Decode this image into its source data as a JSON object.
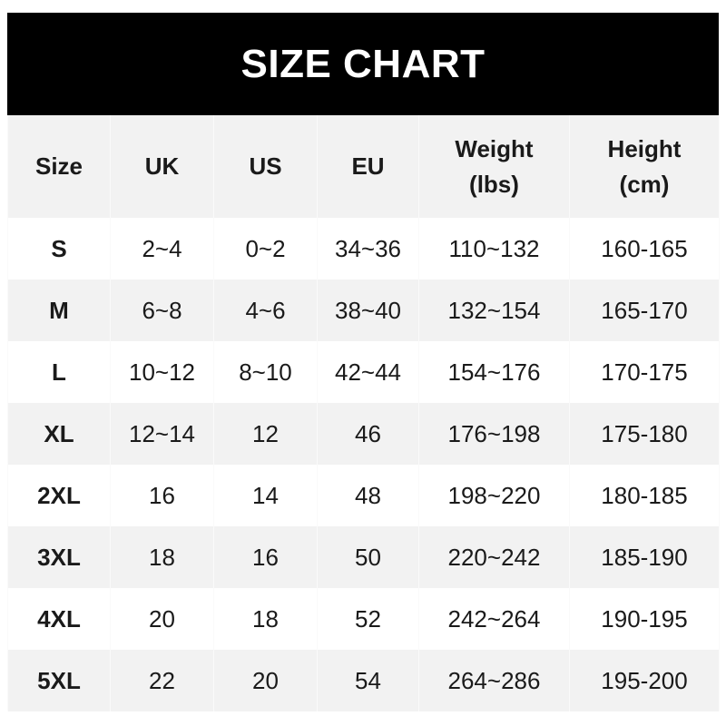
{
  "title": "SIZE CHART",
  "chart_data": {
    "type": "table",
    "title": "SIZE CHART",
    "columns": [
      "Size",
      "UK",
      "US",
      "EU",
      "Weight (lbs)",
      "Height (cm)"
    ],
    "header": [
      {
        "line1": "Size",
        "line2": ""
      },
      {
        "line1": "UK",
        "line2": ""
      },
      {
        "line1": "US",
        "line2": ""
      },
      {
        "line1": "EU",
        "line2": ""
      },
      {
        "line1": "Weight",
        "line2": "(lbs)"
      },
      {
        "line1": "Height",
        "line2": "(cm)"
      }
    ],
    "rows": [
      [
        "S",
        "2~4",
        "0~2",
        "34~36",
        "110~132",
        "160-165"
      ],
      [
        "M",
        "6~8",
        "4~6",
        "38~40",
        "132~154",
        "165-170"
      ],
      [
        "L",
        "10~12",
        "8~10",
        "42~44",
        "154~176",
        "170-175"
      ],
      [
        "XL",
        "12~14",
        "12",
        "46",
        "176~198",
        "175-180"
      ],
      [
        "2XL",
        "16",
        "14",
        "48",
        "198~220",
        "180-185"
      ],
      [
        "3XL",
        "18",
        "16",
        "50",
        "220~242",
        "185-190"
      ],
      [
        "4XL",
        "20",
        "18",
        "52",
        "242~264",
        "190-195"
      ],
      [
        "5XL",
        "22",
        "20",
        "54",
        "264~286",
        "195-200"
      ]
    ]
  },
  "colors": {
    "header_bg": "#000000",
    "header_text": "#ffffff",
    "stripe": "#f2f2f2",
    "text": "#1a1a1a"
  }
}
